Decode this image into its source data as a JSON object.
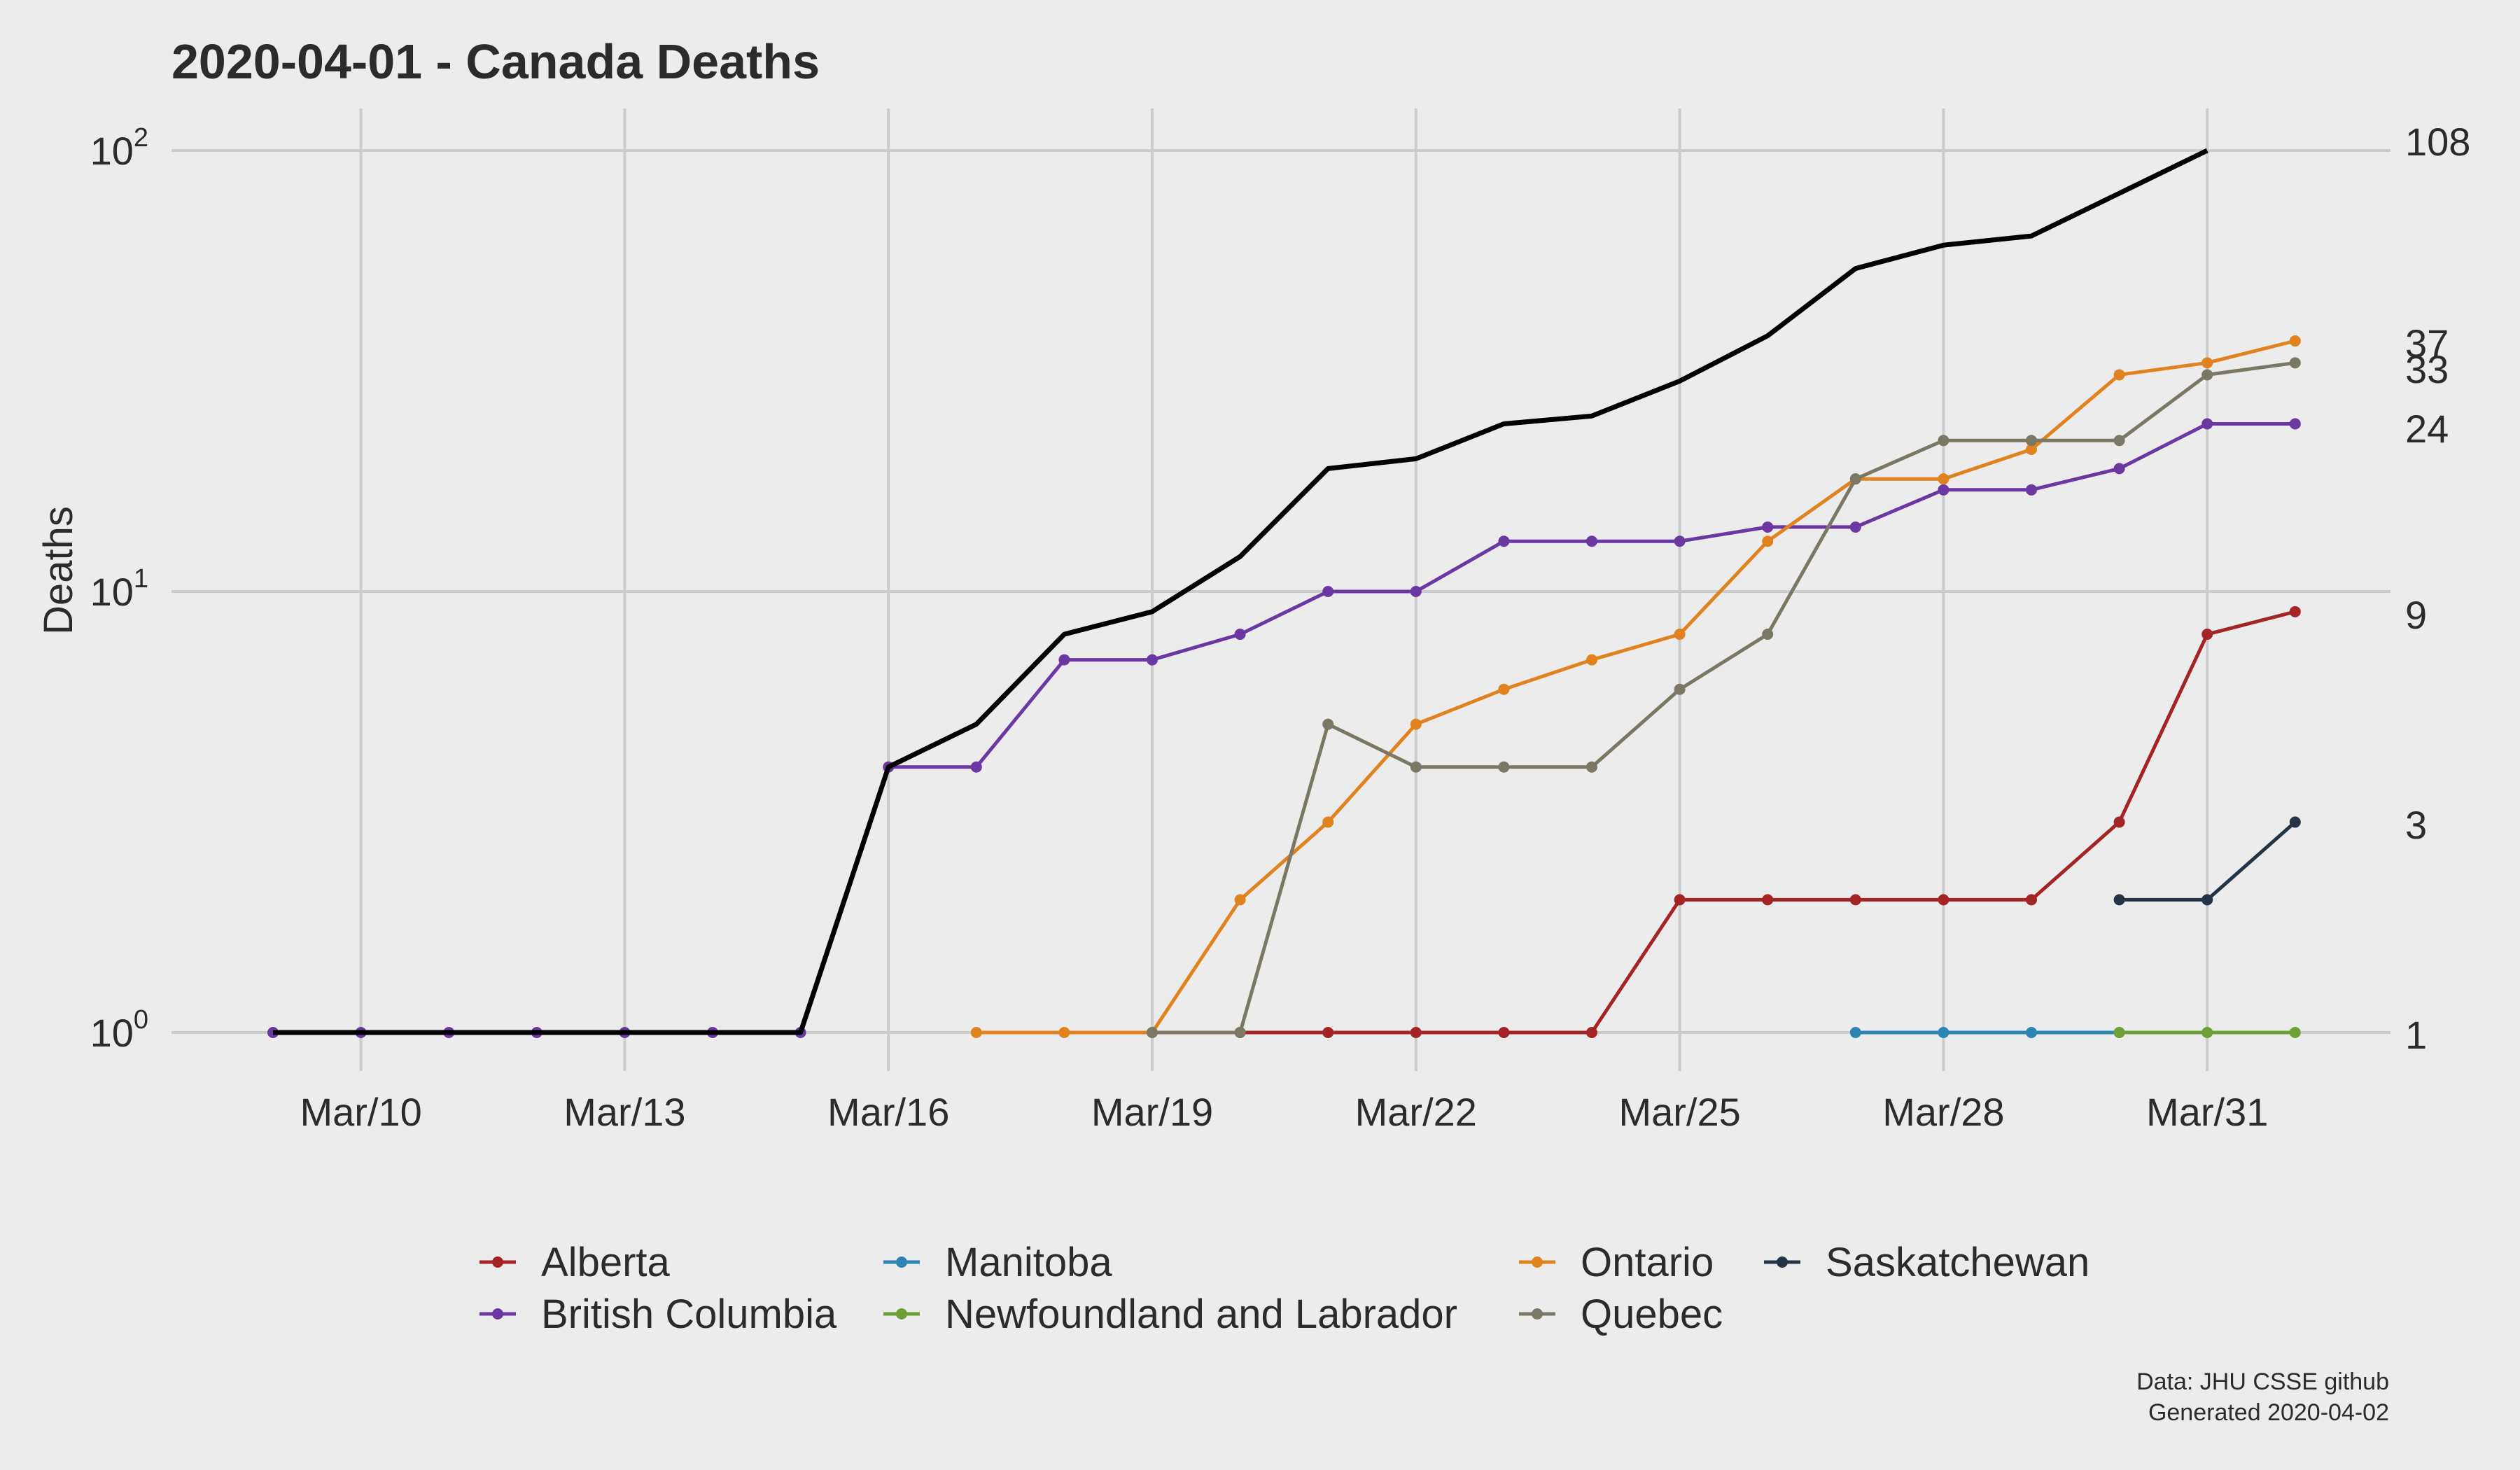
{
  "chart_data": {
    "type": "line",
    "title": "2020-04-01 - Canada Deaths",
    "ylabel": "Deaths",
    "xlabel": "",
    "yscale": "log10",
    "ylim": [
      0.78,
      125
    ],
    "y_ticks": [
      {
        "value": 1,
        "base": "10",
        "exp": "0"
      },
      {
        "value": 10,
        "base": "10",
        "exp": "1"
      },
      {
        "value": 100,
        "base": "10",
        "exp": "2"
      }
    ],
    "x_dates": [
      "Mar/09",
      "Mar/10",
      "Mar/11",
      "Mar/12",
      "Mar/13",
      "Mar/14",
      "Mar/15",
      "Mar/16",
      "Mar/17",
      "Mar/18",
      "Mar/19",
      "Mar/20",
      "Mar/21",
      "Mar/22",
      "Mar/23",
      "Mar/24",
      "Mar/25",
      "Mar/26",
      "Mar/27",
      "Mar/28",
      "Mar/29",
      "Mar/30",
      "Mar/31",
      "Apr/01"
    ],
    "x_tick_labels": [
      {
        "date": "Mar/10",
        "label": "Mar/10"
      },
      {
        "date": "Mar/13",
        "label": "Mar/13"
      },
      {
        "date": "Mar/16",
        "label": "Mar/16"
      },
      {
        "date": "Mar/19",
        "label": "Mar/19"
      },
      {
        "date": "Mar/22",
        "label": "Mar/22"
      },
      {
        "date": "Mar/25",
        "label": "Mar/25"
      },
      {
        "date": "Mar/28",
        "label": "Mar/28"
      },
      {
        "date": "Mar/31",
        "label": "Mar/31"
      }
    ],
    "grid": true,
    "legend_position": "bottom",
    "total": {
      "color": "#000000",
      "points": [
        [
          "Mar/09",
          1
        ],
        [
          "Mar/10",
          1
        ],
        [
          "Mar/11",
          1
        ],
        [
          "Mar/12",
          1
        ],
        [
          "Mar/13",
          1
        ],
        [
          "Mar/14",
          1
        ],
        [
          "Mar/15",
          1
        ],
        [
          "Mar/16",
          4
        ],
        [
          "Mar/17",
          5
        ],
        [
          "Mar/18",
          8
        ],
        [
          "Mar/19",
          9
        ],
        [
          "Mar/20",
          12
        ],
        [
          "Mar/21",
          19
        ],
        [
          "Mar/22",
          20
        ],
        [
          "Mar/23",
          24
        ],
        [
          "Mar/24",
          25
        ],
        [
          "Mar/25",
          30
        ],
        [
          "Mar/26",
          38
        ],
        [
          "Mar/27",
          54
        ],
        [
          "Mar/28",
          61
        ],
        [
          "Mar/29",
          64
        ],
        [
          "Mar/30",
          80
        ],
        [
          "Mar/31",
          100
        ]
      ]
    },
    "series": [
      {
        "name": "Alberta",
        "color": "#a32423",
        "points": [
          [
            "Mar/20",
            1
          ],
          [
            "Mar/21",
            1
          ],
          [
            "Mar/22",
            1
          ],
          [
            "Mar/23",
            1
          ],
          [
            "Mar/24",
            1
          ],
          [
            "Mar/25",
            2
          ],
          [
            "Mar/26",
            2
          ],
          [
            "Mar/27",
            2
          ],
          [
            "Mar/28",
            2
          ],
          [
            "Mar/29",
            2
          ],
          [
            "Mar/30",
            3
          ],
          [
            "Mar/31",
            8
          ],
          [
            "Apr/01",
            9
          ]
        ]
      },
      {
        "name": "British Columbia",
        "color": "#6b37a3",
        "points": [
          [
            "Mar/09",
            1
          ],
          [
            "Mar/10",
            1
          ],
          [
            "Mar/11",
            1
          ],
          [
            "Mar/12",
            1
          ],
          [
            "Mar/13",
            1
          ],
          [
            "Mar/14",
            1
          ],
          [
            "Mar/15",
            1
          ],
          [
            "Mar/16",
            4
          ],
          [
            "Mar/17",
            4
          ],
          [
            "Mar/18",
            7
          ],
          [
            "Mar/19",
            7
          ],
          [
            "Mar/20",
            8
          ],
          [
            "Mar/21",
            10
          ],
          [
            "Mar/22",
            10
          ],
          [
            "Mar/23",
            13
          ],
          [
            "Mar/24",
            13
          ],
          [
            "Mar/25",
            13
          ],
          [
            "Mar/26",
            14
          ],
          [
            "Mar/27",
            14
          ],
          [
            "Mar/28",
            17
          ],
          [
            "Mar/29",
            17
          ],
          [
            "Mar/30",
            19
          ],
          [
            "Mar/31",
            24
          ],
          [
            "Apr/01",
            24
          ]
        ]
      },
      {
        "name": "Manitoba",
        "color": "#2c85b2",
        "points": [
          [
            "Mar/27",
            1
          ],
          [
            "Mar/28",
            1
          ],
          [
            "Mar/29",
            1
          ],
          [
            "Mar/30",
            1
          ]
        ]
      },
      {
        "name": "Newfoundland and Labrador",
        "color": "#6ea035",
        "points": [
          [
            "Mar/30",
            1
          ],
          [
            "Mar/31",
            1
          ],
          [
            "Apr/01",
            1
          ]
        ]
      },
      {
        "name": "Ontario",
        "color": "#e0831f",
        "points": [
          [
            "Mar/17",
            1
          ],
          [
            "Mar/18",
            1
          ],
          [
            "Mar/19",
            1
          ],
          [
            "Mar/20",
            2
          ],
          [
            "Mar/21",
            3
          ],
          [
            "Mar/22",
            5
          ],
          [
            "Mar/23",
            6
          ],
          [
            "Mar/24",
            7
          ],
          [
            "Mar/25",
            8
          ],
          [
            "Mar/26",
            13
          ],
          [
            "Mar/27",
            18
          ],
          [
            "Mar/28",
            18
          ],
          [
            "Mar/29",
            21
          ],
          [
            "Mar/30",
            31
          ],
          [
            "Mar/31",
            33
          ],
          [
            "Apr/01",
            37
          ]
        ]
      },
      {
        "name": "Quebec",
        "color": "#7b7765",
        "points": [
          [
            "Mar/19",
            1
          ],
          [
            "Mar/20",
            1
          ],
          [
            "Mar/21",
            5
          ],
          [
            "Mar/22",
            4
          ],
          [
            "Mar/23",
            4
          ],
          [
            "Mar/24",
            4
          ],
          [
            "Mar/25",
            6
          ],
          [
            "Mar/26",
            8
          ],
          [
            "Mar/27",
            18
          ],
          [
            "Mar/28",
            22
          ],
          [
            "Mar/29",
            22
          ],
          [
            "Mar/30",
            22
          ],
          [
            "Mar/31",
            31
          ],
          [
            "Apr/01",
            33
          ]
        ]
      },
      {
        "name": "Saskatchewan",
        "color": "#243446",
        "points": [
          [
            "Mar/30",
            2
          ],
          [
            "Mar/31",
            2
          ],
          [
            "Apr/01",
            3
          ]
        ]
      }
    ],
    "end_labels": [
      {
        "text": "108",
        "value": 108
      },
      {
        "text": "37",
        "value": 37
      },
      {
        "text": "33",
        "value": 33
      },
      {
        "text": "24",
        "value": 24
      },
      {
        "text": "9",
        "value": 9
      },
      {
        "text": "3",
        "value": 3
      },
      {
        "text": "1",
        "value": 1
      }
    ],
    "caption": [
      "Data: JHU CSSE github",
      "Generated 2020-04-02"
    ]
  }
}
